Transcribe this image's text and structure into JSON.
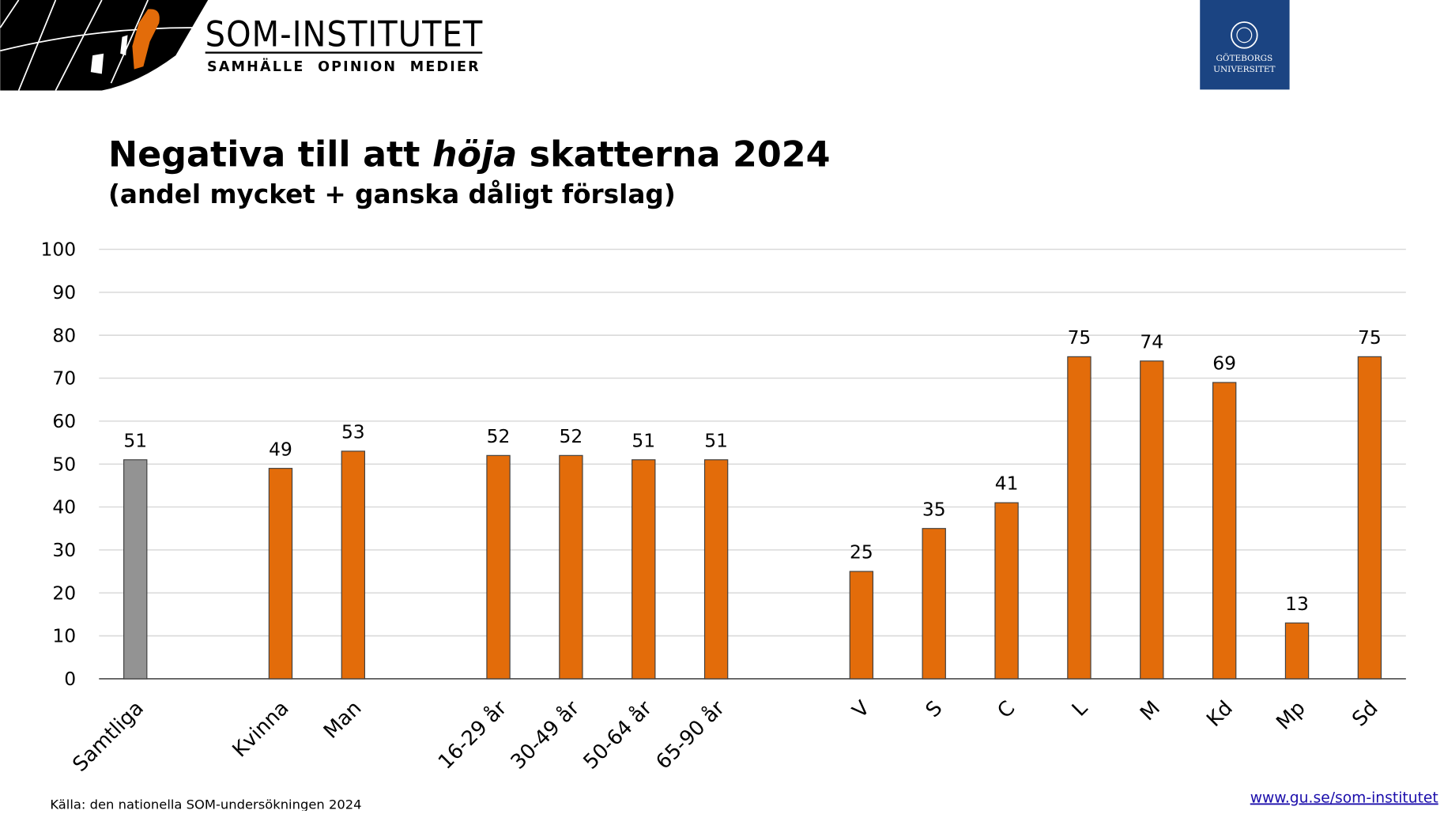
{
  "header": {
    "brand": "SOM-INSTITUTET",
    "tagline": "SAMHÄLLE  OPINION  MEDIER",
    "university": [
      "GÖTEBORGS",
      "UNIVERSITET"
    ]
  },
  "chart_data": {
    "type": "bar",
    "title_parts": [
      "Negativa till att ",
      "höja",
      " skatterna 2024"
    ],
    "subtitle": "(andel mycket + ganska dåligt förslag)",
    "categories": [
      "Samtliga",
      null,
      "Kvinna",
      "Man",
      null,
      "16-29 år",
      "30-49 år",
      "50-64 år",
      "65-90 år",
      null,
      "V",
      "S",
      "C",
      "L",
      "M",
      "Kd",
      "Mp",
      "Sd"
    ],
    "values": [
      51,
      null,
      49,
      53,
      null,
      52,
      52,
      51,
      51,
      null,
      25,
      35,
      41,
      75,
      74,
      69,
      13,
      75
    ],
    "colors": [
      "#939393",
      null,
      "#e36c0a",
      "#e36c0a",
      null,
      "#e36c0a",
      "#e36c0a",
      "#e36c0a",
      "#e36c0a",
      null,
      "#e36c0a",
      "#e36c0a",
      "#e36c0a",
      "#e36c0a",
      "#e36c0a",
      "#e36c0a",
      "#e36c0a",
      "#e36c0a"
    ],
    "ylim": [
      0,
      100
    ],
    "yticks": [
      0,
      10,
      20,
      30,
      40,
      50,
      60,
      70,
      80,
      90,
      100
    ],
    "grid": true
  },
  "footer": {
    "source": "Källa: den nationella SOM-undersökningen 2024",
    "link": "www.gu.se/som-institutet"
  }
}
